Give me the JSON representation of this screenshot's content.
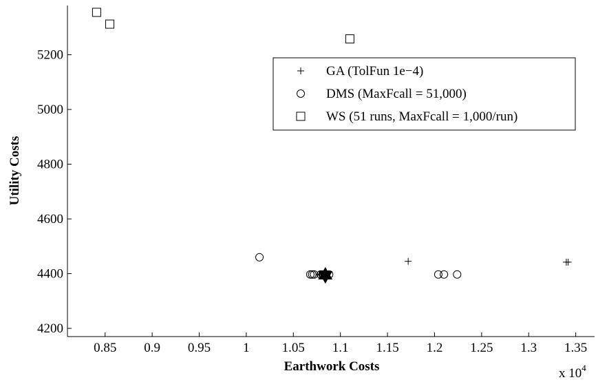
{
  "chart_data": {
    "type": "scatter",
    "title": "",
    "xlabel": "Earthwork Costs",
    "ylabel": "Utility Costs",
    "x_multiplier_label": "x 10",
    "x_multiplier_exponent": "4",
    "xlim": [
      0.81,
      1.37
    ],
    "ylim": [
      4170,
      5380
    ],
    "xticks": [
      0.85,
      0.9,
      0.95,
      1,
      1.05,
      1.1,
      1.15,
      1.2,
      1.25,
      1.3,
      1.35
    ],
    "xtick_labels": [
      "0.85",
      "0.9",
      "0.95",
      "1",
      "1.05",
      "1.1",
      "1.15",
      "1.2",
      "1.25",
      "1.3",
      "1.35"
    ],
    "yticks": [
      4200,
      4400,
      4600,
      4800,
      5000,
      5200
    ],
    "ytick_labels": [
      "4200",
      "4400",
      "4600",
      "4800",
      "5000",
      "5200"
    ],
    "legend_position": "top-right",
    "series": [
      {
        "name": "GA (TolFun 1e−4)",
        "marker": "plus",
        "points": [
          {
            "x": 1.172,
            "y": 4445
          },
          {
            "x": 1.34,
            "y": 4442
          },
          {
            "x": 1.342,
            "y": 4442
          },
          {
            "x": 1.078,
            "y": 4397
          },
          {
            "x": 1.08,
            "y": 4397
          }
        ]
      },
      {
        "name": "DMS (MaxFcall = 51,000)",
        "marker": "circle",
        "points": [
          {
            "x": 1.014,
            "y": 4460
          },
          {
            "x": 1.068,
            "y": 4397
          },
          {
            "x": 1.07,
            "y": 4397
          },
          {
            "x": 1.072,
            "y": 4397
          },
          {
            "x": 1.079,
            "y": 4397
          },
          {
            "x": 1.081,
            "y": 4397
          },
          {
            "x": 1.088,
            "y": 4397
          },
          {
            "x": 1.204,
            "y": 4397
          },
          {
            "x": 1.21,
            "y": 4397
          },
          {
            "x": 1.224,
            "y": 4397
          }
        ]
      },
      {
        "name": "WS (51 runs, MaxFcall = 1,000/run)",
        "marker": "square",
        "points": [
          {
            "x": 0.841,
            "y": 5355
          },
          {
            "x": 0.855,
            "y": 5312
          },
          {
            "x": 1.11,
            "y": 5258
          }
        ]
      }
    ],
    "highlight": {
      "marker": "hexagram",
      "x": 1.084,
      "y": 4394
    }
  }
}
